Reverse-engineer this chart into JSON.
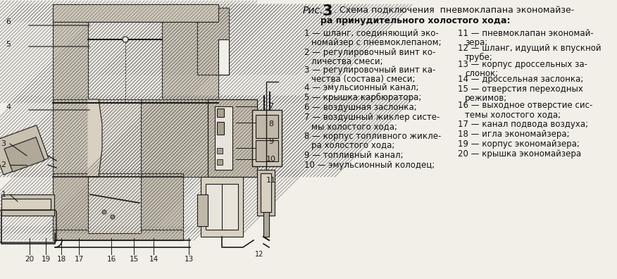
{
  "bg_color": "#f2efe9",
  "text_color": "#111111",
  "draw_bg": "#f2efe9",
  "title_parts": {
    "rис": "Рис.",
    "num": "3",
    "rest_line1": ". Схема подключения  пневмоклапана экономайзе-",
    "rest_line2": "ра принудительного холостого хода:"
  },
  "left_items": [
    [
      "1",
      " — шланг, соединяющий эко-"
    ],
    [
      "",
      "номайзер с пневмоклепаном;"
    ],
    [
      "2",
      " — регулировочный винт ко-"
    ],
    [
      "",
      "личества смеси;"
    ],
    [
      "3",
      " — регулировочный винт ка-"
    ],
    [
      "",
      "чества (состава) смеси;"
    ],
    [
      "4",
      " — эмульсионный канал;"
    ],
    [
      "5",
      " — крышка карбюратора;"
    ],
    [
      "6",
      " — воздушная заслонка;"
    ],
    [
      "7",
      " — воздушный жиклер систе-"
    ],
    [
      "",
      "мы холостого хода;"
    ],
    [
      "8",
      " — корпус топливного жикле-"
    ],
    [
      "",
      "ра холостого хода;"
    ],
    [
      "9",
      " — топливный канал;"
    ],
    [
      "10",
      " — эмульсионный колодец;"
    ]
  ],
  "right_items": [
    [
      "11",
      " — пневмоклапан экономай-"
    ],
    [
      "",
      "зера;"
    ],
    [
      "12",
      " — шланг, идущий к впускной"
    ],
    [
      "",
      "трубе;"
    ],
    [
      "13",
      " — корпус дроссельных за-"
    ],
    [
      "",
      "слонок;"
    ],
    [
      "14",
      " — дроссельная заслонка;"
    ],
    [
      "15",
      " — отверстия переходных"
    ],
    [
      "",
      "режимов;"
    ],
    [
      "16",
      " — выходное отверстие сис-"
    ],
    [
      "",
      "темы холостого хода;"
    ],
    [
      "17",
      " — канал подвода воздуха;"
    ],
    [
      "18",
      " — игла экономайзера;"
    ],
    [
      "19",
      " — корпус экономайзера;"
    ],
    [
      "20",
      " — крышка экономайзера"
    ]
  ],
  "lc": "#1a1a1a",
  "hatch_color": "#555555",
  "white": "#ffffff",
  "light_gray": "#e8e4dc",
  "mid_gray": "#c8c0b0",
  "dark_gray": "#9a9080"
}
